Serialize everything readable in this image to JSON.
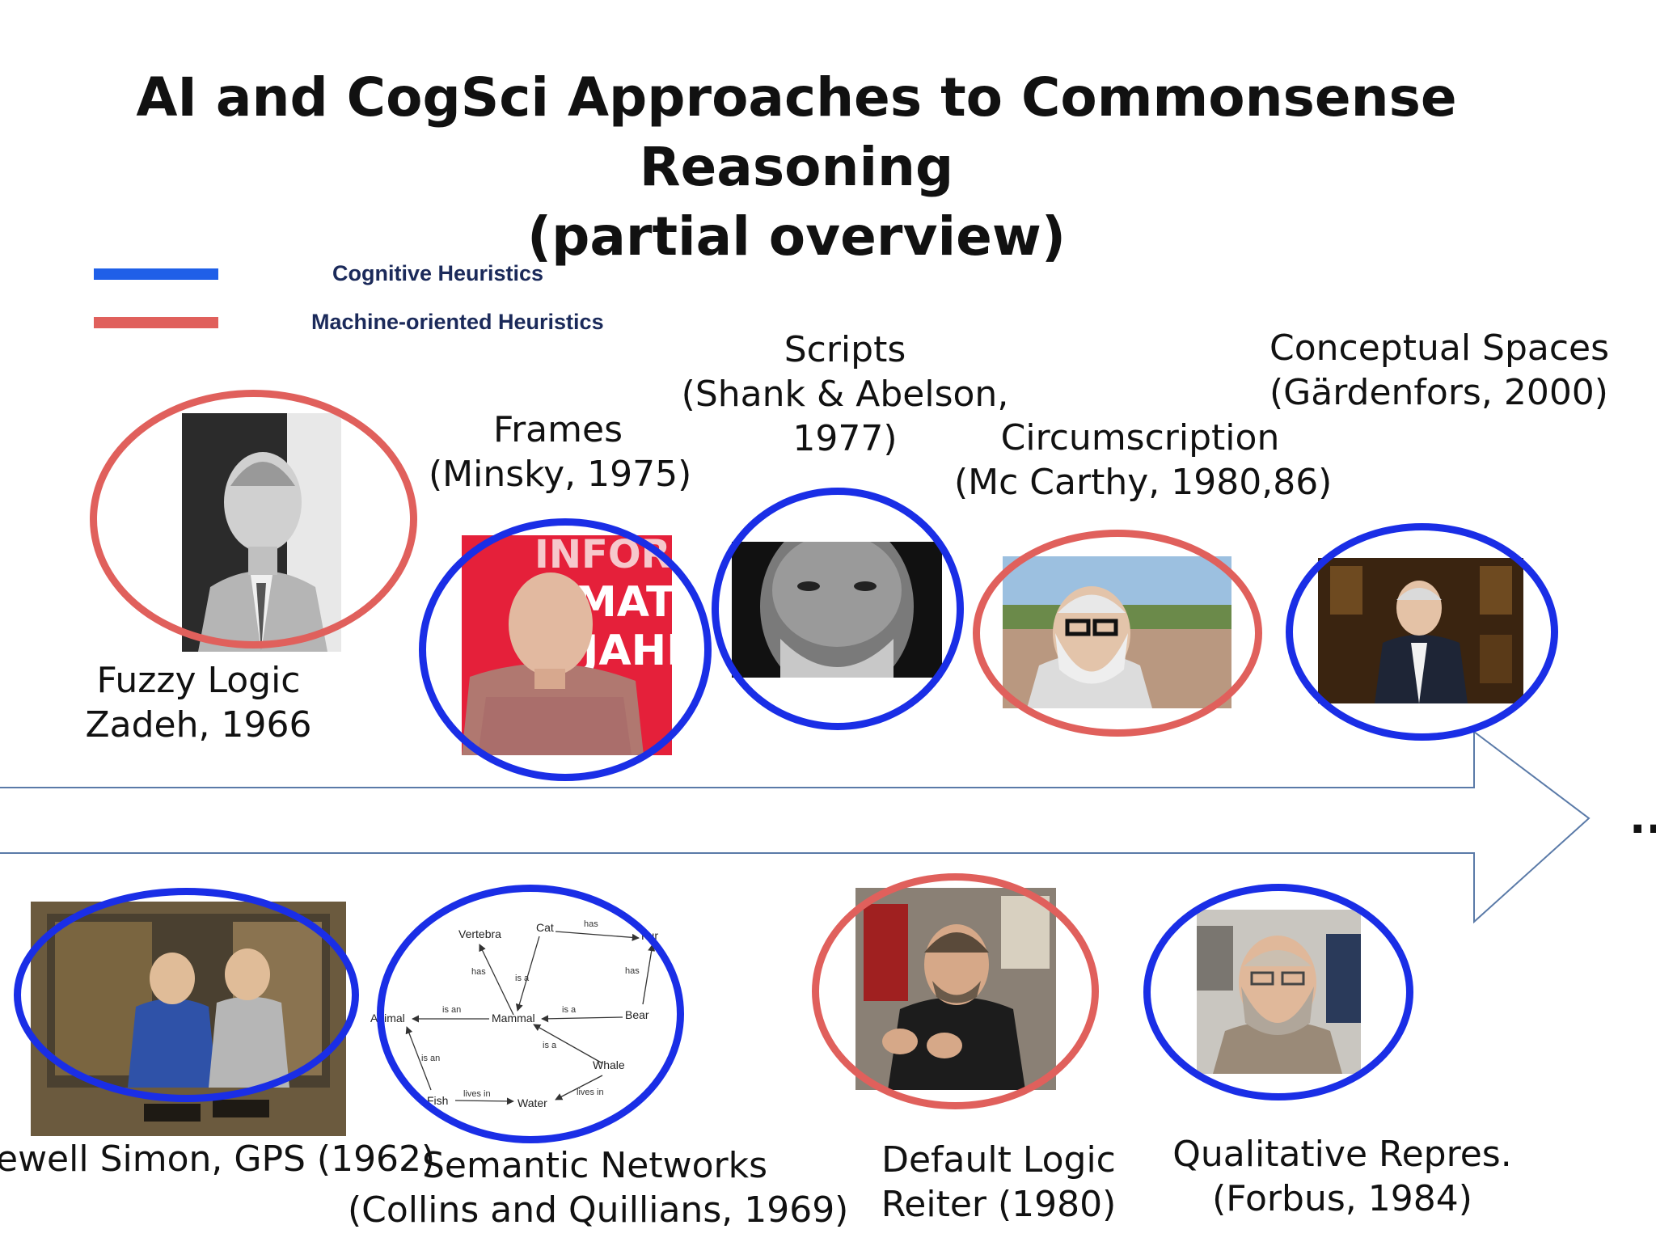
{
  "slide": {
    "title_line1": "AI and CogSci Approaches to Commonsense Reasoning",
    "title_line2": "(partial overview)"
  },
  "colors": {
    "cognitive": "#1a2ee6",
    "legend_blue": "#1f5fe8",
    "machine": "#e0605c",
    "arrow": "#5a7aa8"
  },
  "legend": [
    {
      "label": "Cognitive Heuristics",
      "kind": "cognitive"
    },
    {
      "label": "Machine-oriented Heuristics",
      "kind": "machine"
    }
  ],
  "timeline": {
    "continuation": "..."
  },
  "approaches": [
    {
      "id": "fuzzy-logic",
      "line1": "Fuzzy Logic",
      "line2": "Zadeh, 1966",
      "kind": "machine"
    },
    {
      "id": "frames",
      "line1": "Frames",
      "line2": "(Minsky, 1975)",
      "kind": "cognitive"
    },
    {
      "id": "scripts",
      "line1": "Scripts",
      "line2": "(Shank & Abelson,",
      "line3": "1977)",
      "kind": "cognitive"
    },
    {
      "id": "circumscription",
      "line1": "Circumscription",
      "line2": "(Mc Carthy, 1980,86)",
      "kind": "machine"
    },
    {
      "id": "conceptual-spaces",
      "line1": "Conceptual Spaces",
      "line2": "(Gärdenfors, 2000)",
      "kind": "cognitive"
    },
    {
      "id": "gps",
      "line1": "ewell Simon, GPS (1962)",
      "kind": "cognitive"
    },
    {
      "id": "semantic-networks",
      "line1": "Semantic Networks",
      "line2": "(Collins and Quillians, 1969)",
      "kind": "cognitive"
    },
    {
      "id": "default-logic",
      "line1": "Default Logic",
      "line2": "Reiter (1980)",
      "kind": "machine"
    },
    {
      "id": "qualitative-repres",
      "line1": "Qualitative Repres.",
      "line2": "(Forbus, 1984)",
      "kind": "cognitive"
    }
  ],
  "semantic_network": {
    "nodes": {
      "vertebra": "Vertebra",
      "cat": "Cat",
      "fur": "Fur",
      "animal": "Animal",
      "mammal": "Mammal",
      "bear": "Bear",
      "whale": "Whale",
      "fish": "Fish",
      "water": "Water"
    },
    "edges": {
      "mammal_vertebra": "has",
      "cat_mammal": "is a",
      "cat_fur": "has",
      "bear_fur": "has",
      "mammal_animal": "is an",
      "bear_mammal": "is a",
      "whale_mammal": "is a",
      "fish_animal": "is an",
      "fish_water": "lives in",
      "whale_water": "lives in"
    }
  }
}
